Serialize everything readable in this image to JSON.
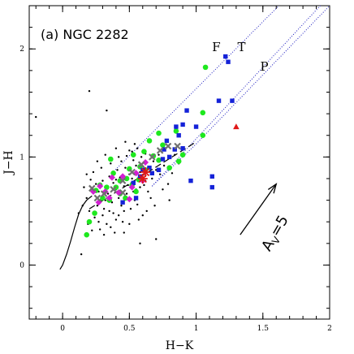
{
  "chart_data": {
    "type": "scatter",
    "title": "(a) NGC 2282",
    "xlabel": "H−K",
    "ylabel": "J−H",
    "xlim": [
      -0.25,
      2.0
    ],
    "ylim": [
      -0.5,
      2.4
    ],
    "xticks": [
      {
        "v": 0,
        "label": "0"
      },
      {
        "v": 0.5,
        "label": "0.5"
      },
      {
        "v": 1,
        "label": "1"
      },
      {
        "v": 1.5,
        "label": "1.5"
      },
      {
        "v": 2,
        "label": "2"
      }
    ],
    "yticks": [
      {
        "v": 0,
        "label": "0"
      },
      {
        "v": 1,
        "label": "1"
      },
      {
        "v": 2,
        "label": "2"
      }
    ],
    "band_labels": [
      {
        "text": "F",
        "x": 1.12,
        "y": 1.98
      },
      {
        "text": "T",
        "x": 1.31,
        "y": 1.98
      },
      {
        "text": "P",
        "x": 1.48,
        "y": 1.8
      }
    ],
    "reddening_vector": {
      "label": "A",
      "sub": "V",
      "rest": "=5",
      "from": [
        1.33,
        0.28
      ],
      "to": [
        1.6,
        0.75
      ]
    },
    "colors": {
      "green": "#1ee81e",
      "blue": "#1422d8",
      "magenta": "#d21ed2",
      "red": "#e01818",
      "cross": "#707070",
      "dotted": "#1a1abf"
    },
    "reddening_lines": [
      {
        "from": [
          0.37,
          0.85
        ],
        "to": [
          1.62,
          2.4
        ]
      },
      {
        "from": [
          0.67,
          0.73
        ],
        "to": [
          1.93,
          2.4
        ]
      },
      {
        "from": [
          1.0,
          1.12
        ],
        "to": [
          2.0,
          2.4
        ]
      }
    ],
    "ctts_locus": {
      "x": [
        0.2,
        1.0
      ],
      "y": [
        0.52,
        1.14
      ]
    },
    "dwarf_locus": {
      "x": [
        -0.02,
        0.0,
        0.03,
        0.06,
        0.09,
        0.12,
        0.15,
        0.18,
        0.22
      ],
      "y": [
        -0.04,
        0.0,
        0.1,
        0.22,
        0.35,
        0.47,
        0.55,
        0.6,
        0.64
      ]
    },
    "series": [
      {
        "name": "",
        "marker": "dot",
        "color": "#000000",
        "points": [
          [
            -0.2,
            1.37
          ],
          [
            0.2,
            1.61
          ],
          [
            0.33,
            1.43
          ],
          [
            0.52,
            1.05
          ],
          [
            0.58,
            0.2
          ],
          [
            0.7,
            0.24
          ],
          [
            0.14,
            0.1
          ],
          [
            0.18,
            0.84
          ],
          [
            0.44,
            0.96
          ],
          [
            0.48,
            1.01
          ],
          [
            0.54,
            1.12
          ],
          [
            0.62,
            1.03
          ],
          [
            0.28,
            0.33
          ],
          [
            0.36,
            0.35
          ],
          [
            0.46,
            0.3
          ],
          [
            0.6,
            0.46
          ],
          [
            0.79,
            0.75
          ],
          [
            0.82,
            0.85
          ],
          [
            0.5,
            0.84
          ],
          [
            0.55,
            0.92
          ],
          [
            0.68,
            0.96
          ],
          [
            0.72,
            1.02
          ],
          [
            0.41,
            0.88
          ],
          [
            0.25,
            0.75
          ],
          [
            0.31,
            0.52
          ],
          [
            0.38,
            0.48
          ],
          [
            0.44,
            0.55
          ],
          [
            0.62,
            0.78
          ],
          [
            0.54,
            0.6
          ],
          [
            0.66,
            0.62
          ],
          [
            0.28,
            0.6
          ],
          [
            0.34,
            0.66
          ],
          [
            0.4,
            0.7
          ],
          [
            0.46,
            0.73
          ],
          [
            0.52,
            0.8
          ],
          [
            0.58,
            0.86
          ],
          [
            0.64,
            0.9
          ],
          [
            0.7,
            0.88
          ],
          [
            0.76,
            0.92
          ],
          [
            0.3,
            0.78
          ],
          [
            0.35,
            0.82
          ],
          [
            0.4,
            0.79
          ],
          [
            0.47,
            0.9
          ],
          [
            0.53,
            0.97
          ],
          [
            0.59,
            1.0
          ],
          [
            0.22,
            0.7
          ],
          [
            0.27,
            0.68
          ],
          [
            0.33,
            0.72
          ],
          [
            0.38,
            0.76
          ],
          [
            0.43,
            0.81
          ],
          [
            0.49,
            0.74
          ],
          [
            0.55,
            0.7
          ],
          [
            0.61,
            0.74
          ],
          [
            0.67,
            0.8
          ],
          [
            0.73,
            0.84
          ],
          [
            0.2,
            0.5
          ],
          [
            0.26,
            0.55
          ],
          [
            0.32,
            0.6
          ],
          [
            0.37,
            0.58
          ],
          [
            0.42,
            0.62
          ],
          [
            0.48,
            0.66
          ],
          [
            0.53,
            0.68
          ],
          [
            0.58,
            0.72
          ],
          [
            0.64,
            0.68
          ],
          [
            0.24,
            0.44
          ],
          [
            0.3,
            0.46
          ],
          [
            0.35,
            0.5
          ],
          [
            0.4,
            0.42
          ],
          [
            0.46,
            0.5
          ],
          [
            0.51,
            0.52
          ],
          [
            0.56,
            0.56
          ],
          [
            0.27,
            0.4
          ],
          [
            0.33,
            0.38
          ],
          [
            0.42,
            0.46
          ],
          [
            0.18,
            0.62
          ],
          [
            0.16,
            0.72
          ],
          [
            0.21,
            0.79
          ],
          [
            0.23,
            0.86
          ],
          [
            0.29,
            0.9
          ],
          [
            0.36,
            0.94
          ],
          [
            0.42,
            1.0
          ],
          [
            0.5,
            1.06
          ],
          [
            0.56,
            1.08
          ],
          [
            0.75,
            0.7
          ],
          [
            0.8,
            0.6
          ],
          [
            0.69,
            0.55
          ],
          [
            0.63,
            0.5
          ],
          [
            0.15,
            0.55
          ],
          [
            0.12,
            0.48
          ],
          [
            0.19,
            0.38
          ],
          [
            0.22,
            0.32
          ],
          [
            0.31,
            0.28
          ],
          [
            0.39,
            0.3
          ],
          [
            0.45,
            0.4
          ],
          [
            0.5,
            0.38
          ],
          [
            0.57,
            0.42
          ],
          [
            0.32,
            1.02
          ],
          [
            0.4,
            1.08
          ],
          [
            0.47,
            1.14
          ],
          [
            0.26,
            0.96
          ],
          [
            0.87,
            0.94
          ],
          [
            0.84,
            1.02
          ]
        ]
      },
      {
        "name": "",
        "marker": "circle",
        "color": "#1ee81e",
        "points": [
          [
            1.07,
            1.83
          ],
          [
            0.72,
            1.22
          ],
          [
            1.05,
            1.41
          ],
          [
            1.05,
            1.2
          ],
          [
            0.85,
            1.24
          ],
          [
            0.75,
            1.11
          ],
          [
            0.72,
            0.97
          ],
          [
            0.68,
            1.01
          ],
          [
            0.61,
            1.05
          ],
          [
            0.62,
            0.88
          ],
          [
            0.65,
            1.15
          ],
          [
            0.5,
            0.89
          ],
          [
            0.48,
            0.8
          ],
          [
            0.43,
            0.78
          ],
          [
            0.38,
            0.85
          ],
          [
            0.4,
            0.72
          ],
          [
            0.33,
            0.72
          ],
          [
            0.28,
            0.74
          ],
          [
            0.25,
            0.69
          ],
          [
            0.3,
            0.62
          ],
          [
            0.35,
            0.6
          ],
          [
            0.47,
            0.62
          ],
          [
            0.55,
            0.68
          ],
          [
            0.57,
            0.79
          ],
          [
            0.58,
            0.91
          ],
          [
            0.53,
            1.02
          ],
          [
            0.36,
            0.98
          ],
          [
            0.18,
            0.28
          ],
          [
            0.2,
            0.4
          ],
          [
            0.24,
            0.48
          ],
          [
            0.8,
            0.9
          ],
          [
            0.87,
            0.96
          ],
          [
            0.9,
            1.02
          ],
          [
            0.43,
            0.66
          ],
          [
            0.52,
            0.74
          ]
        ]
      },
      {
        "name": "",
        "marker": "square",
        "color": "#1422d8",
        "points": [
          [
            1.22,
            1.93
          ],
          [
            1.24,
            1.88
          ],
          [
            1.17,
            1.52
          ],
          [
            1.27,
            1.52
          ],
          [
            0.93,
            1.43
          ],
          [
            1.0,
            1.28
          ],
          [
            0.9,
            1.3
          ],
          [
            0.85,
            1.28
          ],
          [
            0.87,
            1.2
          ],
          [
            0.78,
            1.15
          ],
          [
            0.76,
            1.07
          ],
          [
            0.84,
            1.07
          ],
          [
            0.8,
            1.0
          ],
          [
            0.75,
            0.98
          ],
          [
            0.65,
            0.9
          ],
          [
            0.67,
            0.85
          ],
          [
            0.58,
            0.82
          ],
          [
            0.6,
            0.88
          ],
          [
            0.53,
            0.76
          ],
          [
            1.12,
            0.82
          ],
          [
            1.12,
            0.72
          ],
          [
            0.96,
            0.78
          ],
          [
            0.72,
            0.88
          ],
          [
            0.9,
            1.08
          ],
          [
            0.55,
            0.62
          ],
          [
            0.45,
            0.58
          ]
        ]
      },
      {
        "name": "",
        "marker": "triangle",
        "color": "#e01818",
        "points": [
          [
            1.3,
            1.28
          ]
        ]
      },
      {
        "name": "",
        "marker": "diamond",
        "color": "#d21ed2",
        "points": [
          [
            0.52,
            0.72
          ],
          [
            0.42,
            0.67
          ],
          [
            0.27,
            0.58
          ],
          [
            0.32,
            0.68
          ],
          [
            0.23,
            0.68
          ],
          [
            0.37,
            0.81
          ],
          [
            0.45,
            0.82
          ],
          [
            0.62,
            0.95
          ],
          [
            0.35,
            0.62
          ],
          [
            0.5,
            0.61
          ],
          [
            0.28,
            0.73
          ],
          [
            0.55,
            0.85
          ],
          [
            0.6,
            0.78
          ]
        ]
      },
      {
        "name": "",
        "marker": "cross",
        "color": "#707070",
        "points": [
          [
            0.86,
            1.1
          ],
          [
            0.79,
            1.1
          ],
          [
            0.73,
            1.06
          ],
          [
            0.67,
            1.0
          ],
          [
            0.59,
            0.93
          ],
          [
            0.52,
            0.86
          ],
          [
            0.45,
            0.78
          ],
          [
            0.38,
            0.7
          ],
          [
            0.31,
            0.66
          ],
          [
            0.26,
            0.62
          ],
          [
            0.22,
            0.71
          ],
          [
            0.45,
            0.67
          ]
        ]
      },
      {
        "name": "",
        "marker": "star",
        "color": "#e01818",
        "points": [
          [
            0.6,
            0.8
          ],
          [
            0.62,
            0.86
          ]
        ]
      }
    ]
  }
}
